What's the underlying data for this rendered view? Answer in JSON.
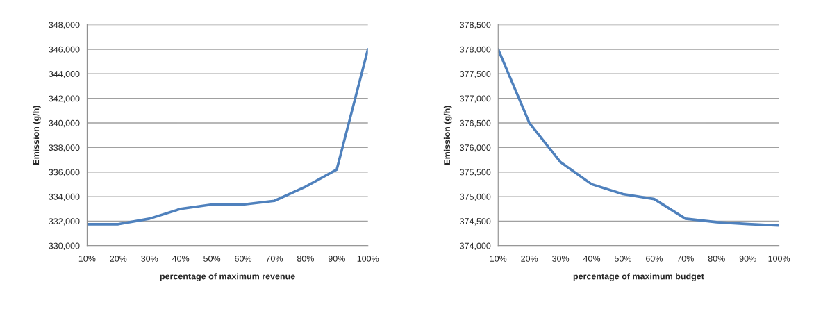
{
  "chart_data": [
    {
      "type": "line",
      "xlabel": "percentage of maximum revenue",
      "ylabel": "Emission (g/h)",
      "categories": [
        "10%",
        "20%",
        "30%",
        "40%",
        "50%",
        "60%",
        "70%",
        "80%",
        "90%",
        "100%"
      ],
      "series": [
        {
          "color": "#4f81bd",
          "values": [
            331750,
            331750,
            332200,
            333000,
            333350,
            333350,
            333650,
            334800,
            336200,
            346000
          ]
        }
      ],
      "ylim": [
        330000,
        348000
      ],
      "yticks": [
        {
          "value": 330000,
          "label": "330,000"
        },
        {
          "value": 332000,
          "label": "332,000"
        },
        {
          "value": 334000,
          "label": "334,000"
        },
        {
          "value": 336000,
          "label": "336,000"
        },
        {
          "value": 338000,
          "label": "338,000"
        },
        {
          "value": 340000,
          "label": "340,000"
        },
        {
          "value": 342000,
          "label": "342,000"
        },
        {
          "value": 344000,
          "label": "344,000"
        },
        {
          "value": 346000,
          "label": "346,000"
        },
        {
          "value": 348000,
          "label": "348,000"
        }
      ],
      "grid": "y",
      "marker": "none",
      "line_style": "solid"
    },
    {
      "type": "line",
      "xlabel": "percentage of maximum budget",
      "ylabel": "Emission (g/h)",
      "categories": [
        "10%",
        "20%",
        "30%",
        "40%",
        "50%",
        "60%",
        "70%",
        "80%",
        "90%",
        "100%"
      ],
      "series": [
        {
          "color": "#4f81bd",
          "values": [
            378000,
            376500,
            375700,
            375250,
            375050,
            374950,
            374550,
            374480,
            374440,
            374410
          ]
        }
      ],
      "ylim": [
        374000,
        378500
      ],
      "yticks": [
        {
          "value": 374000,
          "label": "374,000"
        },
        {
          "value": 374500,
          "label": "374,500"
        },
        {
          "value": 375000,
          "label": "375,000"
        },
        {
          "value": 375500,
          "label": "375,500"
        },
        {
          "value": 376000,
          "label": "376,000"
        },
        {
          "value": 376500,
          "label": "376,500"
        },
        {
          "value": 377000,
          "label": "377,000"
        },
        {
          "value": 377500,
          "label": "377,500"
        },
        {
          "value": 378000,
          "label": "378,000"
        },
        {
          "value": 378500,
          "label": "378,500"
        }
      ],
      "grid": "y",
      "marker": "none",
      "line_style": "solid"
    }
  ]
}
